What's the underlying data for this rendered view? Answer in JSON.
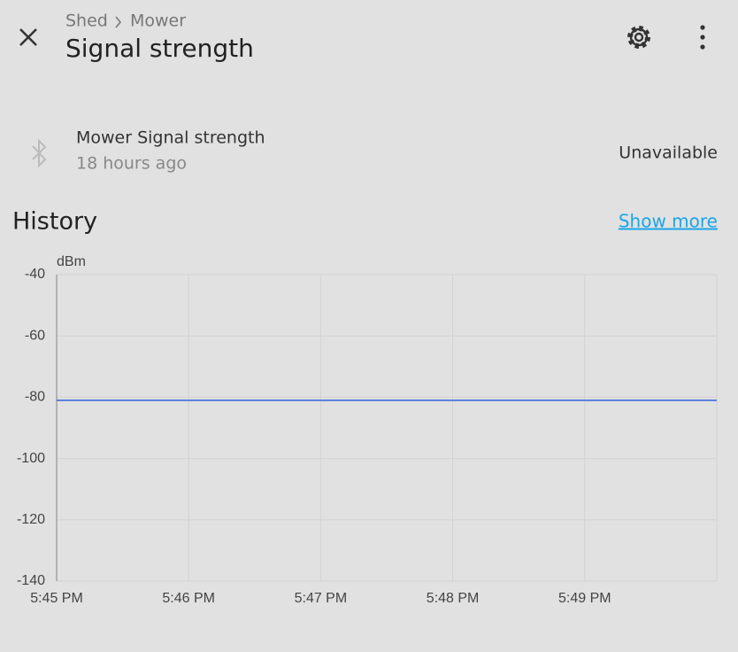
{
  "header": {
    "breadcrumb": [
      "Shed",
      "Mower"
    ],
    "title": "Signal strength"
  },
  "entity": {
    "name": "Mower Signal strength",
    "last_changed": "18 hours ago",
    "state": "Unavailable"
  },
  "history": {
    "title": "History",
    "link": "Show more"
  },
  "chart_data": {
    "type": "line",
    "y_label": "dBm",
    "x": [
      "5:45 PM",
      "5:46 PM",
      "5:47 PM",
      "5:48 PM",
      "5:49 PM",
      null
    ],
    "values": [
      -81,
      -81,
      -81,
      -81,
      -81,
      -81
    ],
    "color": "#4a74dc",
    "ylim": [
      -140,
      -40
    ],
    "yticks": [
      -40,
      -60,
      -80,
      -100,
      -120,
      -140
    ],
    "grid": true
  }
}
